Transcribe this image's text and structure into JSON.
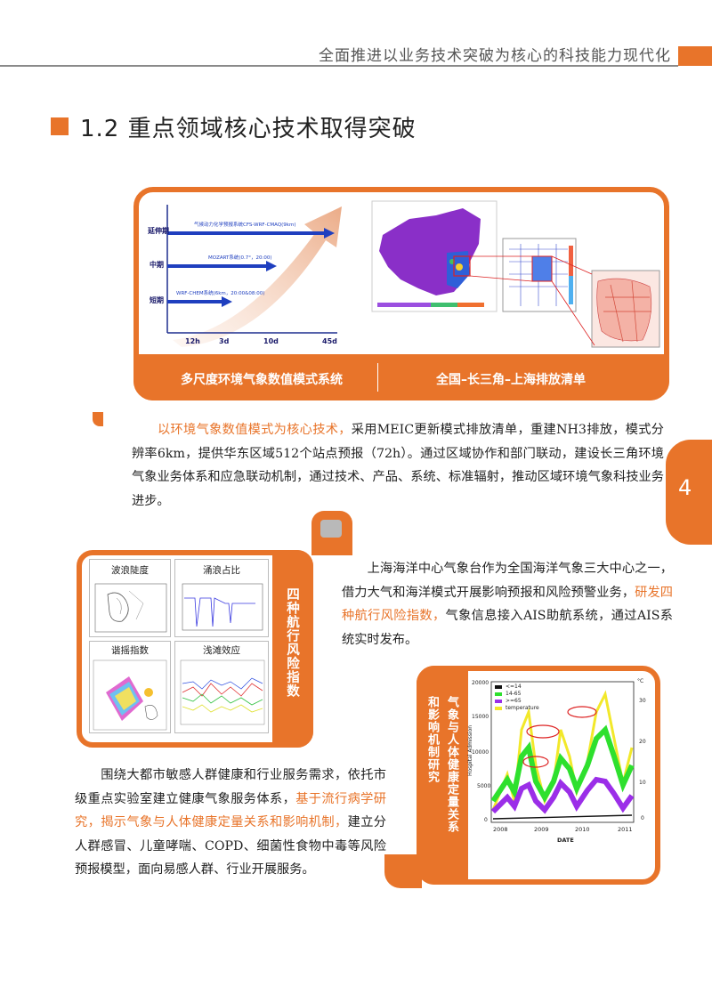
{
  "header": {
    "title": "全面推进以业务技术突破为核心的科技能力现代化"
  },
  "section": {
    "title": "1.2 重点领域核心技术取得突破"
  },
  "panel1": {
    "caption_left": "多尺度环境气象数值模式系统",
    "caption_right": "全国–长三角–上海排放清单",
    "chart": {
      "row_labels": [
        "延伸期",
        "中期",
        "短期"
      ],
      "x_ticks": [
        "12h",
        "3d",
        "10d",
        "45d"
      ],
      "arrow_labels": [
        "气候动力化学预报系统CFS-WRF-CMAQ(9km)",
        "MOZART系统(0.7°，20:00)",
        "WRF-CHEM系统(6km，20:00&08:00)"
      ]
    }
  },
  "para1": {
    "highlight": "以环境气象数值模式为核心技术，",
    "text": "采用MEIC更新模式排放清单，重建NH3排放，模式分辨率6km，提供华东区域512个站点预报（72h）。通过区域协作和部门联动，建设长三角环境气象业务体系和应急联动机制，通过技术、产品、系统、标准辐射，推动区域环境气象科技业务进步。"
  },
  "page_number": "4",
  "panel2": {
    "side_label": "四种航行风险指数",
    "thumbs": [
      "波浪陡度",
      "涌浪占比",
      "谐摇指数",
      "浅滩效应"
    ]
  },
  "para2": {
    "text1": "上海海洋中心气象台作为全国海洋气象三大中心之一，借力大气和海洋模式开展影响预报和风险预警业务，",
    "highlight": "研发四种航行风险指数，",
    "text2": "气象信息接入AIS助航系统，通过AIS系统实时发布。"
  },
  "panel3": {
    "side_label_a": "气象与人体健康定量关系",
    "side_label_b": "和影响机制研究",
    "chart": {
      "ylabel": "Hospital Admission",
      "xlabel": "DATE",
      "x_ticks": [
        "2008",
        "2009",
        "2010",
        "2011"
      ],
      "y_ticks": [
        "0",
        "5000",
        "10000",
        "15000",
        "20000"
      ],
      "y2_ticks": [
        "0",
        "10",
        "20",
        "30"
      ],
      "y2_unit": "°C",
      "legend": [
        "<=14",
        "14-65",
        ">=65",
        "temperature"
      ]
    }
  },
  "para3": {
    "text1": "围绕大都市敏感人群健康和行业服务需求，依托市级重点实验室建立健康气象服务体系，",
    "highlight": "基于流行病学研究，揭示气象与人体健康定量关系和影响机制，",
    "text2": "建立分人群感冒、儿童哮喘、COPD、细菌性食物中毒等风险预报模型，面向易感人群、行业开展服务。"
  }
}
